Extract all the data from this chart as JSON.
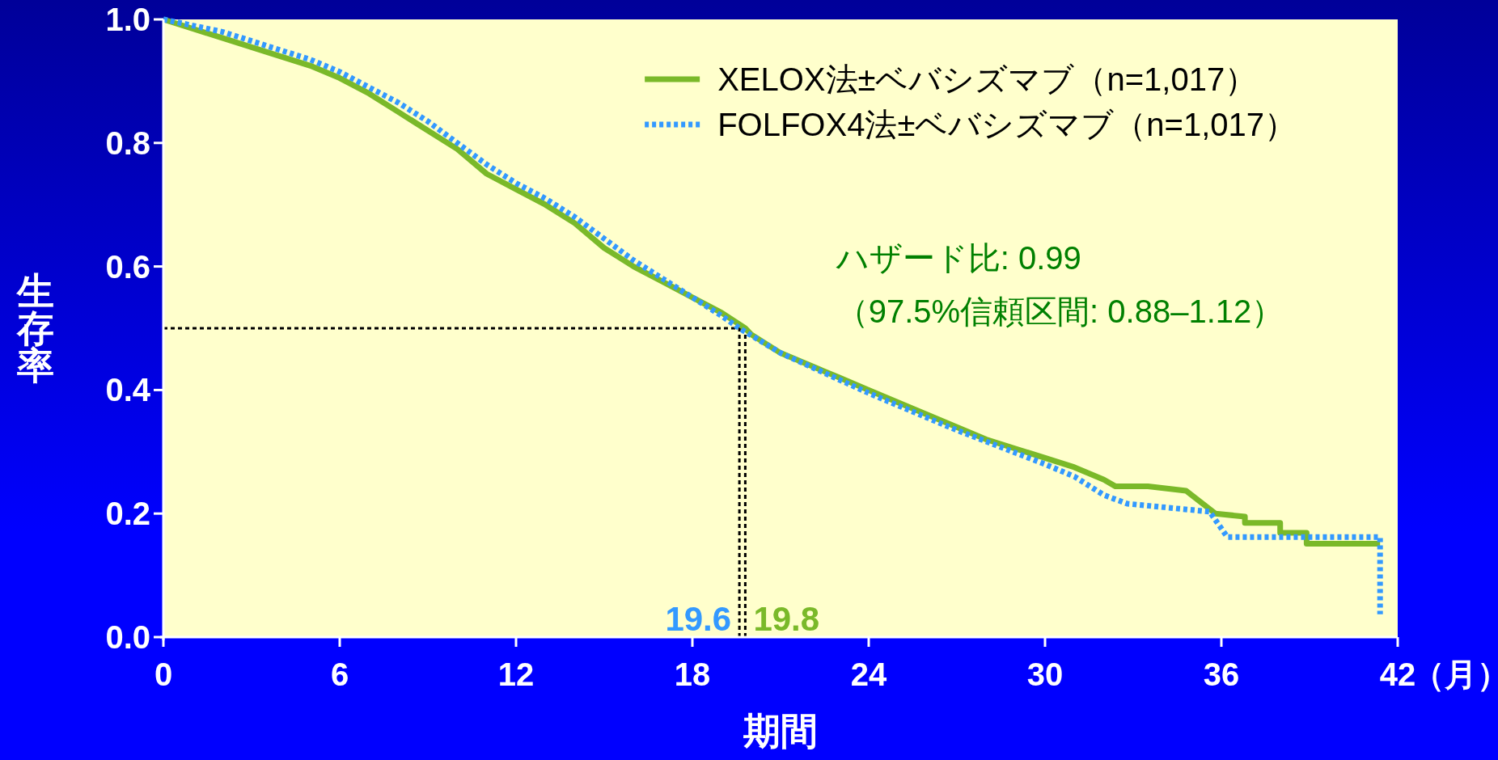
{
  "chart_data": {
    "type": "line",
    "xlabel": "期間",
    "ylabel": "生存率",
    "xlim": [
      0,
      42
    ],
    "ylim": [
      0,
      1
    ],
    "xticks": [
      0,
      6,
      12,
      18,
      24,
      30,
      36,
      42
    ],
    "yticks": [
      {
        "value": 0,
        "label": "0.0"
      },
      {
        "value": 0.2,
        "label": "0.2"
      },
      {
        "value": 0.4,
        "label": "0.4"
      },
      {
        "value": 0.6,
        "label": "0.6"
      },
      {
        "value": 0.8,
        "label": "0.8"
      },
      {
        "value": 1,
        "label": "1.0"
      }
    ],
    "legend": "top right",
    "grid": false,
    "series": [
      {
        "name": "XELOX法±ベバシズマブ（n=1,017）",
        "color": "#7ab929",
        "line_style": "solid",
        "x": [
          0,
          1,
          2,
          3,
          4,
          5,
          6,
          7,
          8,
          9,
          10,
          11,
          12,
          13,
          14,
          15,
          16,
          17,
          18,
          19,
          19.8,
          20,
          21,
          22,
          23,
          24,
          25,
          26,
          27,
          28,
          29,
          30,
          31,
          32,
          32.4,
          33.5,
          34.8,
          35.8,
          36.8,
          36.8,
          38.0,
          38.0,
          38.9,
          38.9,
          41.4
        ],
        "values": [
          1.0,
          0.985,
          0.97,
          0.955,
          0.94,
          0.925,
          0.905,
          0.88,
          0.85,
          0.82,
          0.79,
          0.75,
          0.725,
          0.7,
          0.67,
          0.63,
          0.6,
          0.575,
          0.55,
          0.525,
          0.5,
          0.49,
          0.46,
          0.44,
          0.42,
          0.4,
          0.38,
          0.36,
          0.34,
          0.32,
          0.305,
          0.29,
          0.275,
          0.255,
          0.244,
          0.244,
          0.237,
          0.2,
          0.195,
          0.185,
          0.185,
          0.169,
          0.169,
          0.151,
          0.151
        ]
      },
      {
        "name": "FOLFOX4法±ベバシズマブ（n=1,017）",
        "color": "#3399ff",
        "line_style": "dotted",
        "x": [
          0,
          1,
          2,
          3,
          4,
          5,
          6,
          7,
          8,
          9,
          10,
          11,
          12,
          13,
          14,
          15,
          16,
          17,
          18,
          19,
          19.6,
          21,
          24,
          27,
          30,
          31,
          32,
          32.8,
          35.6,
          36.2,
          41.4,
          41.4
        ],
        "values": [
          1.0,
          0.99,
          0.98,
          0.965,
          0.95,
          0.935,
          0.915,
          0.89,
          0.865,
          0.835,
          0.8,
          0.765,
          0.735,
          0.71,
          0.68,
          0.645,
          0.61,
          0.58,
          0.55,
          0.52,
          0.5,
          0.46,
          0.395,
          0.335,
          0.28,
          0.26,
          0.23,
          0.216,
          0.203,
          0.162,
          0.162,
          0.037
        ]
      }
    ],
    "ref_lines": [
      {
        "axis": "y",
        "value": 0.5,
        "color": "#000000",
        "line_style": "dotted"
      },
      {
        "axis": "x",
        "value": 19.6,
        "color": "#000000",
        "line_style": "dotted"
      },
      {
        "axis": "x",
        "value": 19.8,
        "color": "#000000",
        "line_style": "dotted"
      }
    ],
    "annotations": [
      {
        "text": "19.8",
        "x": 19.8,
        "y": 0
      },
      {
        "text": "19.6",
        "x": 19.6,
        "y": 0
      },
      "ハザード比: 0.99",
      "（97.5%信頼区間: 0.88–1.12）",
      "（月）"
    ]
  }
}
